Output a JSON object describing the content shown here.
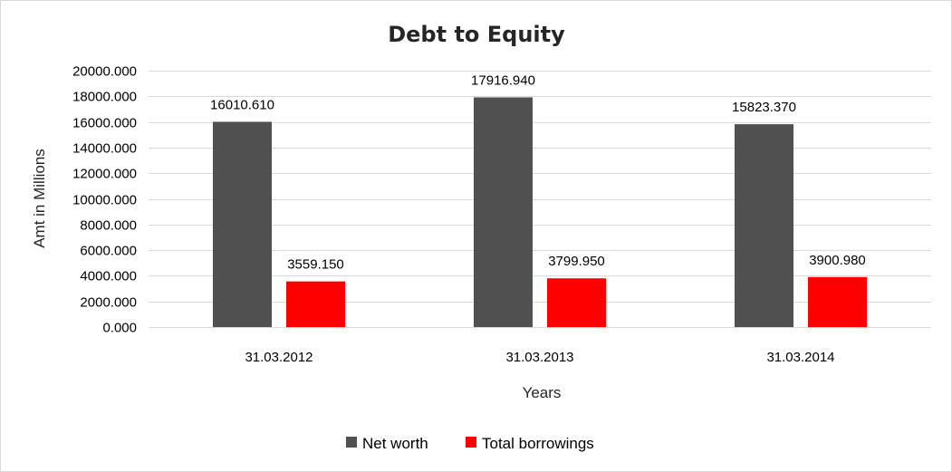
{
  "chart_data": {
    "type": "bar",
    "title": "Debt to Equity",
    "xlabel": "Years",
    "ylabel": "Amt in Millions",
    "categories": [
      "31.03.2012",
      "31.03.2013",
      "31.03.2014"
    ],
    "series": [
      {
        "name": "Net worth",
        "color": "#505050",
        "values": [
          16010.61,
          17916.94,
          15823.37
        ],
        "labels": [
          "16010.610",
          "17916.940",
          "15823.370"
        ]
      },
      {
        "name": "Total borrowings",
        "color": "#ff0000",
        "values": [
          3559.15,
          3799.95,
          3900.98
        ],
        "labels": [
          "3559.150",
          "3799.950",
          "3900.980"
        ]
      }
    ],
    "ylim": [
      0,
      20000
    ],
    "yticks": [
      {
        "value": 0,
        "label": "0.000"
      },
      {
        "value": 2000,
        "label": "2000.000"
      },
      {
        "value": 4000,
        "label": "4000.000"
      },
      {
        "value": 6000,
        "label": "6000.000"
      },
      {
        "value": 8000,
        "label": "8000.000"
      },
      {
        "value": 10000,
        "label": "10000.000"
      },
      {
        "value": 12000,
        "label": "12000.000"
      },
      {
        "value": 14000,
        "label": "14000.000"
      },
      {
        "value": 16000,
        "label": "16000.000"
      },
      {
        "value": 18000,
        "label": "18000.000"
      },
      {
        "value": 20000,
        "label": "20000.000"
      }
    ],
    "grid": true,
    "legend_position": "bottom"
  }
}
